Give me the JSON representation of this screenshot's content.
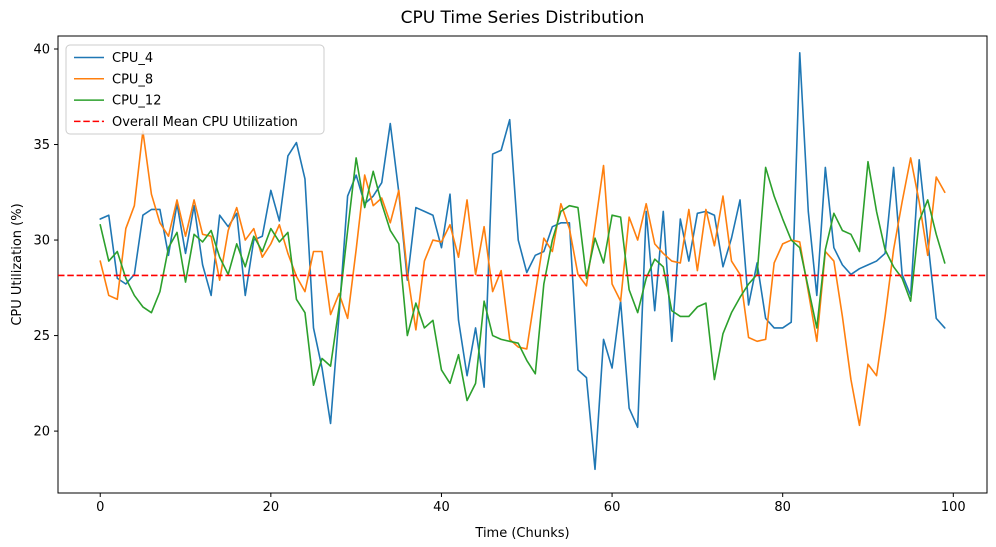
{
  "figure": {
    "background_color": "#ffffff",
    "plot_background_color": "#ffffff",
    "spine_color": "#000000"
  },
  "chart_data": {
    "type": "line",
    "title": "CPU Time Series Distribution",
    "xlabel": "Time (Chunks)",
    "ylabel": "CPU Utilization (%)",
    "grid": false,
    "legend_position": "upper left",
    "x_start": 0,
    "x_step": 1,
    "x_ticks": [
      0,
      20,
      40,
      60,
      80,
      100
    ],
    "y_ticks": [
      20,
      25,
      30,
      35,
      40
    ],
    "xlim": [
      -4.95,
      103.95
    ],
    "ylim": [
      16.76,
      40.68
    ],
    "series": [
      {
        "name": "CPU_4",
        "color": "#1f77b4",
        "values": [
          31.1,
          31.3,
          28.0,
          27.7,
          28.2,
          31.3,
          31.6,
          31.6,
          29.2,
          31.9,
          29.3,
          31.8,
          28.7,
          27.1,
          31.3,
          30.7,
          31.4,
          27.1,
          30.0,
          30.2,
          32.6,
          31.0,
          34.4,
          35.1,
          33.2,
          25.4,
          23.3,
          20.4,
          26.1,
          32.3,
          33.4,
          31.9,
          32.3,
          33.0,
          36.1,
          32.5,
          27.9,
          31.7,
          31.5,
          31.3,
          29.6,
          32.4,
          25.8,
          22.9,
          25.4,
          22.3,
          34.5,
          34.7,
          36.3,
          30.0,
          28.3,
          29.2,
          29.4,
          30.7,
          30.9,
          30.9,
          23.2,
          22.8,
          18.0,
          24.8,
          23.3,
          26.8,
          21.2,
          20.2,
          31.5,
          26.3,
          31.5,
          24.7,
          31.1,
          28.9,
          31.4,
          31.5,
          31.3,
          28.6,
          30.1,
          32.1,
          26.6,
          28.8,
          25.9,
          25.4,
          25.4,
          25.7,
          39.8,
          31.5,
          27.1,
          33.8,
          29.6,
          28.7,
          28.2,
          28.5,
          28.7,
          28.9,
          29.3,
          33.8,
          28.2,
          27.1,
          34.2,
          30.0,
          25.9,
          25.4
        ]
      },
      {
        "name": "CPU_8",
        "color": "#ff7f0e",
        "values": [
          28.9,
          27.1,
          26.9,
          30.6,
          31.8,
          35.7,
          32.4,
          30.9,
          30.2,
          32.1,
          30.2,
          32.1,
          30.3,
          30.2,
          27.9,
          30.5,
          31.7,
          30.0,
          30.6,
          29.1,
          29.8,
          30.8,
          29.3,
          28.1,
          27.3,
          29.4,
          29.4,
          26.1,
          27.2,
          25.9,
          29.5,
          33.4,
          31.8,
          32.2,
          30.9,
          32.6,
          28.3,
          25.3,
          28.9,
          30.0,
          29.9,
          30.8,
          29.1,
          32.1,
          28.2,
          30.7,
          27.3,
          28.4,
          24.8,
          24.4,
          24.3,
          27.2,
          30.1,
          29.4,
          31.9,
          30.6,
          28.2,
          27.6,
          30.7,
          33.9,
          27.7,
          26.8,
          31.2,
          30.0,
          31.9,
          29.8,
          29.3,
          28.9,
          28.8,
          31.6,
          28.4,
          31.6,
          29.7,
          32.3,
          28.9,
          28.2,
          24.9,
          24.7,
          24.8,
          28.8,
          29.8,
          30.0,
          29.9,
          27.3,
          24.7,
          29.4,
          28.9,
          26.0,
          22.7,
          20.3,
          23.5,
          22.9,
          26.0,
          29.5,
          32.0,
          34.3,
          32.0,
          29.2,
          33.3,
          32.5
        ]
      },
      {
        "name": "CPU_12",
        "color": "#2ca02c",
        "values": [
          30.8,
          28.9,
          29.4,
          28.0,
          27.1,
          26.5,
          26.2,
          27.3,
          29.6,
          30.4,
          27.8,
          30.3,
          29.9,
          30.5,
          29.1,
          28.2,
          29.8,
          28.6,
          30.2,
          29.4,
          30.6,
          29.9,
          30.4,
          26.9,
          26.2,
          22.4,
          23.8,
          23.4,
          26.5,
          30.5,
          34.3,
          31.7,
          33.6,
          31.9,
          30.5,
          29.8,
          25.0,
          26.7,
          25.4,
          25.8,
          23.2,
          22.5,
          24.0,
          21.6,
          22.5,
          26.8,
          25.0,
          24.8,
          24.7,
          24.6,
          23.7,
          23.0,
          27.7,
          30.0,
          31.5,
          31.8,
          31.7,
          28.0,
          30.1,
          28.8,
          31.3,
          31.2,
          27.4,
          26.2,
          28.0,
          29.0,
          28.6,
          26.3,
          26.0,
          26.0,
          26.5,
          26.7,
          22.7,
          25.1,
          26.2,
          27.0,
          27.7,
          28.2,
          33.8,
          32.3,
          31.1,
          30.0,
          29.6,
          27.5,
          25.4,
          29.5,
          31.4,
          30.5,
          30.3,
          29.4,
          34.1,
          31.5,
          29.5,
          28.6,
          28.0,
          26.8,
          31.0,
          32.1,
          30.3,
          28.8
        ]
      }
    ],
    "mean_line": {
      "label": "Overall Mean CPU Utilization",
      "value": 28.15,
      "color": "#ff0000",
      "style": "dashed"
    },
    "legend_items": [
      {
        "label": "CPU_4"
      },
      {
        "label": "CPU_8"
      },
      {
        "label": "CPU_12"
      },
      {
        "label": "Overall Mean CPU Utilization"
      }
    ]
  }
}
